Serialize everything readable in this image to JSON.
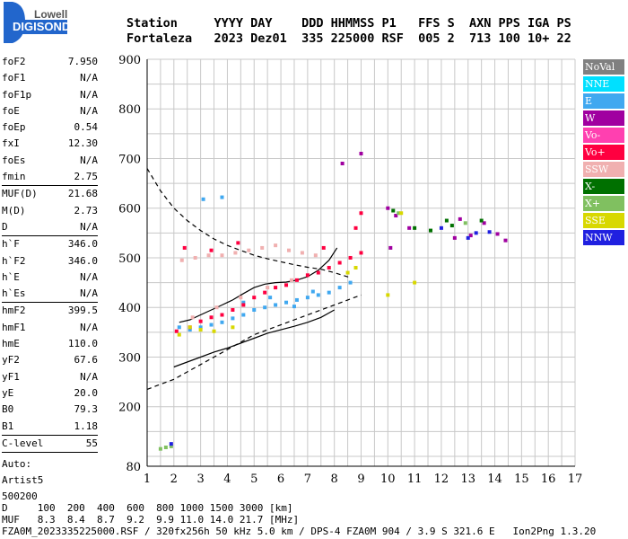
{
  "logo": {
    "line1": "Lowell",
    "line2": "DIGISONDE"
  },
  "header": {
    "line1": "Station     YYYY DAY    DDD HHMMSS P1   FFS S  AXN PPS IGA PS",
    "line2": "Fortaleza   2023 Dez01  335 225000 RSF  005 2  713 100 10+ 22"
  },
  "params": [
    {
      "name": "foF2",
      "value": "7.950"
    },
    {
      "name": "foF1",
      "value": "N/A"
    },
    {
      "name": "foF1p",
      "value": "N/A"
    },
    {
      "name": "foE",
      "value": "N/A"
    },
    {
      "name": "foEp",
      "value": "0.54"
    },
    {
      "name": "fxI",
      "value": "12.30"
    },
    {
      "name": "foEs",
      "value": "N/A"
    },
    {
      "name": "fmin",
      "value": "2.75",
      "sep": true
    },
    {
      "name": "MUF(D)",
      "value": "21.68"
    },
    {
      "name": "M(D)",
      "value": "2.73"
    },
    {
      "name": "D",
      "value": "N/A",
      "sep": true
    },
    {
      "name": "h`F",
      "value": "346.0"
    },
    {
      "name": "h`F2",
      "value": "346.0"
    },
    {
      "name": "h`E",
      "value": "N/A"
    },
    {
      "name": "h`Es",
      "value": "N/A",
      "sep": true
    },
    {
      "name": "hmF2",
      "value": "399.5"
    },
    {
      "name": "hmF1",
      "value": "N/A"
    },
    {
      "name": "hmE",
      "value": "110.0"
    },
    {
      "name": "yF2",
      "value": "67.6"
    },
    {
      "name": "yF1",
      "value": "N/A"
    },
    {
      "name": "yE",
      "value": "20.0"
    },
    {
      "name": "B0",
      "value": "79.3"
    },
    {
      "name": "B1",
      "value": "1.18",
      "sep": true
    },
    {
      "name": "C-level",
      "value": "55",
      "sep": true
    }
  ],
  "auto": {
    "line1": "Auto:",
    "line2": "Artist5",
    "line3": "500200"
  },
  "footer": {
    "line1": "D     100  200  400  600  800 1000 1500 3000 [km]",
    "line2": "MUF   8.3  8.4  8.7  9.2  9.9 11.0 14.0 21.7 [MHz]",
    "line3": "FZA0M_2023335225000.RSF / 320fx256h 50 kHz 5.0 km / DPS-4 FZA0M 904 / 3.9 S 321.6 E   Ion2Png 1.3.20"
  },
  "legend": [
    {
      "label": "NoVal",
      "color": "#808080"
    },
    {
      "label": "NNE",
      "color": "#00e0ff"
    },
    {
      "label": "E",
      "color": "#40a8f0"
    },
    {
      "label": "W",
      "color": "#a000a0"
    },
    {
      "label": "Vo-",
      "color": "#ff40b0"
    },
    {
      "label": "Vo+",
      "color": "#ff0040"
    },
    {
      "label": "SSW",
      "color": "#f0b0b0"
    },
    {
      "label": "X-",
      "color": "#007000"
    },
    {
      "label": "X+",
      "color": "#80c060"
    },
    {
      "label": "SSE",
      "color": "#d8d800"
    },
    {
      "label": "NNW",
      "color": "#2020e0"
    }
  ],
  "chart_data": {
    "type": "scatter",
    "xlabel": "",
    "ylabel": "",
    "xlim": [
      1,
      17
    ],
    "ylim": [
      80,
      900
    ],
    "x_ticks": [
      1,
      2,
      3,
      4,
      5,
      6,
      7,
      8,
      9,
      10,
      11,
      12,
      13,
      14,
      15,
      16,
      17
    ],
    "y_ticks": [
      80,
      200,
      300,
      400,
      500,
      600,
      700,
      800,
      900
    ],
    "grid": true,
    "series": [
      {
        "color": "#40a8f0",
        "points": [
          [
            2.2,
            360
          ],
          [
            2.6,
            355
          ],
          [
            3.0,
            360
          ],
          [
            3.4,
            365
          ],
          [
            3.8,
            370
          ],
          [
            4.2,
            378
          ],
          [
            4.6,
            385
          ],
          [
            5.0,
            395
          ],
          [
            5.4,
            400
          ],
          [
            5.8,
            405
          ],
          [
            6.2,
            410
          ],
          [
            6.6,
            415
          ],
          [
            7.0,
            420
          ],
          [
            7.4,
            425
          ],
          [
            7.8,
            430
          ],
          [
            8.2,
            440
          ],
          [
            8.6,
            450
          ],
          [
            3.1,
            618
          ],
          [
            3.8,
            622
          ],
          [
            4.6,
            410
          ],
          [
            5.6,
            420
          ],
          [
            6.5,
            402
          ],
          [
            7.2,
            432
          ]
        ]
      },
      {
        "color": "#ff0040",
        "points": [
          [
            2.1,
            352
          ],
          [
            2.6,
            360
          ],
          [
            3.0,
            372
          ],
          [
            3.4,
            380
          ],
          [
            3.8,
            385
          ],
          [
            4.2,
            395
          ],
          [
            4.6,
            405
          ],
          [
            5.0,
            420
          ],
          [
            5.4,
            430
          ],
          [
            5.8,
            440
          ],
          [
            6.2,
            445
          ],
          [
            6.6,
            455
          ],
          [
            7.0,
            465
          ],
          [
            7.4,
            470
          ],
          [
            7.8,
            480
          ],
          [
            8.2,
            490
          ],
          [
            8.6,
            500
          ],
          [
            9.0,
            510
          ],
          [
            2.4,
            520
          ],
          [
            3.4,
            515
          ],
          [
            4.4,
            530
          ],
          [
            7.6,
            520
          ],
          [
            8.8,
            560
          ],
          [
            9.0,
            590
          ]
        ]
      },
      {
        "color": "#f0b0b0",
        "points": [
          [
            2.3,
            495
          ],
          [
            2.8,
            500
          ],
          [
            3.3,
            505
          ],
          [
            3.8,
            505
          ],
          [
            4.3,
            510
          ],
          [
            4.8,
            515
          ],
          [
            5.3,
            520
          ],
          [
            5.8,
            525
          ],
          [
            6.3,
            515
          ],
          [
            6.8,
            510
          ],
          [
            7.3,
            505
          ],
          [
            2.7,
            380
          ],
          [
            3.6,
            400
          ],
          [
            4.5,
            420
          ],
          [
            5.5,
            440
          ],
          [
            6.4,
            455
          ]
        ]
      },
      {
        "color": "#a000a0",
        "points": [
          [
            10.0,
            600
          ],
          [
            10.3,
            585
          ],
          [
            10.8,
            560
          ],
          [
            12.5,
            540
          ],
          [
            13.1,
            545
          ],
          [
            14.1,
            548
          ],
          [
            14.4,
            535
          ],
          [
            10.1,
            520
          ],
          [
            12.7,
            578
          ],
          [
            13.6,
            570
          ],
          [
            9.0,
            710
          ],
          [
            8.3,
            690
          ]
        ]
      },
      {
        "color": "#007000",
        "points": [
          [
            11.0,
            560
          ],
          [
            11.6,
            555
          ],
          [
            12.2,
            575
          ],
          [
            12.4,
            565
          ],
          [
            13.5,
            575
          ],
          [
            10.2,
            595
          ]
        ]
      },
      {
        "color": "#80c060",
        "points": [
          [
            1.5,
            115
          ],
          [
            1.7,
            118
          ],
          [
            1.9,
            120
          ],
          [
            10.4,
            590
          ],
          [
            12.9,
            570
          ]
        ]
      },
      {
        "color": "#d8d800",
        "points": [
          [
            3.0,
            355
          ],
          [
            3.5,
            352
          ],
          [
            4.2,
            360
          ],
          [
            8.5,
            470
          ],
          [
            8.8,
            480
          ],
          [
            10.0,
            425
          ],
          [
            10.5,
            590
          ],
          [
            11.0,
            450
          ],
          [
            2.6,
            360
          ],
          [
            2.2,
            345
          ]
        ]
      },
      {
        "color": "#2020e0",
        "points": [
          [
            1.9,
            125
          ],
          [
            13.0,
            540
          ],
          [
            13.3,
            550
          ],
          [
            12.0,
            560
          ],
          [
            13.8,
            552
          ]
        ]
      }
    ],
    "lines": [
      {
        "style": "solid",
        "points": [
          [
            2.2,
            370
          ],
          [
            2.6,
            375
          ],
          [
            3.0,
            385
          ],
          [
            3.4,
            395
          ],
          [
            3.8,
            405
          ],
          [
            4.2,
            415
          ],
          [
            4.6,
            428
          ],
          [
            5.0,
            440
          ],
          [
            5.4,
            447
          ],
          [
            5.8,
            450
          ],
          [
            6.2,
            451
          ],
          [
            6.6,
            455
          ],
          [
            7.0,
            462
          ],
          [
            7.4,
            475
          ],
          [
            7.8,
            495
          ],
          [
            8.1,
            520
          ]
        ]
      },
      {
        "style": "solid",
        "points": [
          [
            2.0,
            280
          ],
          [
            2.5,
            290
          ],
          [
            3.0,
            300
          ],
          [
            3.5,
            310
          ],
          [
            4.0,
            318
          ],
          [
            4.5,
            328
          ],
          [
            5.0,
            338
          ],
          [
            5.5,
            348
          ],
          [
            6.0,
            355
          ],
          [
            6.5,
            362
          ],
          [
            7.0,
            370
          ],
          [
            7.5,
            380
          ],
          [
            8.0,
            395
          ]
        ]
      },
      {
        "style": "dashed",
        "points": [
          [
            1.0,
            680
          ],
          [
            1.5,
            635
          ],
          [
            2.0,
            600
          ],
          [
            2.5,
            575
          ],
          [
            3.0,
            555
          ],
          [
            3.5,
            538
          ],
          [
            4.0,
            525
          ],
          [
            4.5,
            515
          ],
          [
            5.0,
            505
          ],
          [
            5.5,
            498
          ],
          [
            6.0,
            492
          ],
          [
            6.5,
            486
          ],
          [
            7.0,
            481
          ],
          [
            7.5,
            477
          ],
          [
            8.0,
            470
          ],
          [
            8.6,
            460
          ]
        ]
      },
      {
        "style": "dashed",
        "points": [
          [
            1.0,
            235
          ],
          [
            1.5,
            245
          ],
          [
            2.0,
            255
          ],
          [
            2.5,
            270
          ],
          [
            3.0,
            285
          ],
          [
            3.5,
            300
          ],
          [
            4.0,
            315
          ],
          [
            4.5,
            330
          ],
          [
            5.0,
            345
          ],
          [
            5.5,
            355
          ],
          [
            6.0,
            365
          ],
          [
            6.5,
            375
          ],
          [
            7.0,
            385
          ],
          [
            7.5,
            395
          ],
          [
            8.0,
            405
          ],
          [
            8.5,
            415
          ],
          [
            9.0,
            425
          ]
        ]
      }
    ]
  }
}
